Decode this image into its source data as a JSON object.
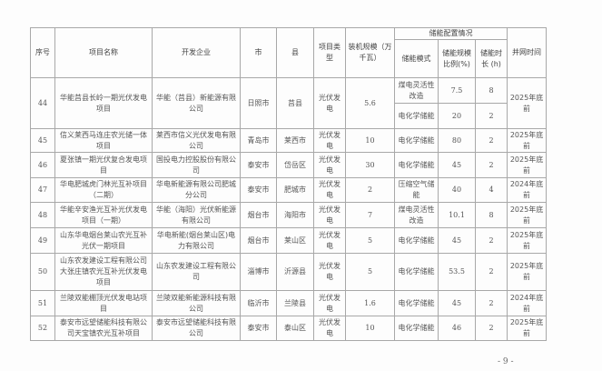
{
  "table": {
    "headers": {
      "no": "序号",
      "name": "项目名称",
      "company": "开发企业",
      "city": "市",
      "county": "县",
      "type": "项目类型",
      "capacity": "装机规模（万千瓦）",
      "storage_group": "储能配置情况",
      "storage_mode": "储能模式",
      "storage_ratio": "储能规模比例(%)",
      "storage_hours": "储能时长 (h)",
      "grid_time": "并网时间"
    },
    "rows": [
      {
        "no": "44",
        "name": "华能莒县长岭一期光伏发电项目",
        "company": "华能（莒县）新能源有限公司",
        "city": "日照市",
        "county": "莒县",
        "type": "光伏发电",
        "capacity": "5.6",
        "storage": [
          {
            "mode": "煤电灵活性改造",
            "ratio": "7.5",
            "hours": "8"
          },
          {
            "mode": "电化学储能",
            "ratio": "20",
            "hours": "2"
          }
        ],
        "grid_time": "2025年底前"
      },
      {
        "no": "45",
        "name": "信义莱西马连庄农光储一体项目",
        "company": "莱西市信义光伏发电有限公司",
        "city": "青岛市",
        "county": "莱西市",
        "type": "光伏发电",
        "capacity": "10",
        "storage": [
          {
            "mode": "电化学储能",
            "ratio": "80",
            "hours": "2"
          }
        ],
        "grid_time": "2025年底前"
      },
      {
        "no": "46",
        "name": "夏张镇一期光伏复合发电项目",
        "company": "国投电力控股股份有限公司",
        "city": "泰安市",
        "county": "岱岳区",
        "type": "光伏发电",
        "capacity": "30",
        "storage": [
          {
            "mode": "电化学储能",
            "ratio": "45",
            "hours": "2"
          }
        ],
        "grid_time": "2025年底前"
      },
      {
        "no": "47",
        "name": "华电肥城虎门林光互补项目（二期）",
        "company": "华电新能源有限公司肥城分公司",
        "city": "泰安市",
        "county": "肥城市",
        "type": "光伏发电",
        "capacity": "2",
        "storage": [
          {
            "mode": "压缩空气储能",
            "ratio": "40",
            "hours": "4"
          }
        ],
        "grid_time": "2024年底前"
      },
      {
        "no": "48",
        "name": "华能辛安渔光互补光伏发电项目（一期）",
        "company": "华能（海阳）光伏新能源有限公司",
        "city": "烟台市",
        "county": "海阳市",
        "type": "光伏发电",
        "capacity": "7",
        "storage": [
          {
            "mode": "煤电灵活性改造",
            "ratio": "10.1",
            "hours": "8"
          }
        ],
        "grid_time": "2025年底前"
      },
      {
        "no": "49",
        "name": "山东华电烟台莱山农光互补光伏一期项目",
        "company": "华电新能(烟台莱山区)电力有限公司",
        "city": "烟台市",
        "county": "莱山区",
        "type": "光伏发电",
        "capacity": "5",
        "storage": [
          {
            "mode": "电化学储能",
            "ratio": "45",
            "hours": "2"
          }
        ],
        "grid_time": "2025年底前"
      },
      {
        "no": "50",
        "name": "山东农发建设工程有限公司大张庄镇农光互补光伏发电项目",
        "company": "山东农发建设工程有限公司",
        "city": "淄博市",
        "county": "沂源县",
        "type": "光伏发电",
        "capacity": "5",
        "storage": [
          {
            "mode": "电化学储能",
            "ratio": "53.5",
            "hours": "2"
          }
        ],
        "grid_time": "2025年底前"
      },
      {
        "no": "51",
        "name": "兰陵双能棚顶光伏发电站项目",
        "company": "兰陵双能新能源科技有限公司",
        "city": "临沂市",
        "county": "兰陵县",
        "type": "光伏发电",
        "capacity": "1.6",
        "storage": [
          {
            "mode": "电化学储能",
            "ratio": "45",
            "hours": "2"
          }
        ],
        "grid_time": "2024年底前"
      },
      {
        "no": "52",
        "name": "泰安市远望储能科技有限公司天宝镇农光互补项目",
        "company": "泰安市远望储能科技有限公司",
        "city": "泰安市",
        "county": "泰山区",
        "type": "光伏发电",
        "capacity": "10",
        "storage": [
          {
            "mode": "电化学储能",
            "ratio": "46",
            "hours": "2"
          }
        ],
        "grid_time": "2025年底前"
      }
    ]
  },
  "page_number": "- 9 -"
}
